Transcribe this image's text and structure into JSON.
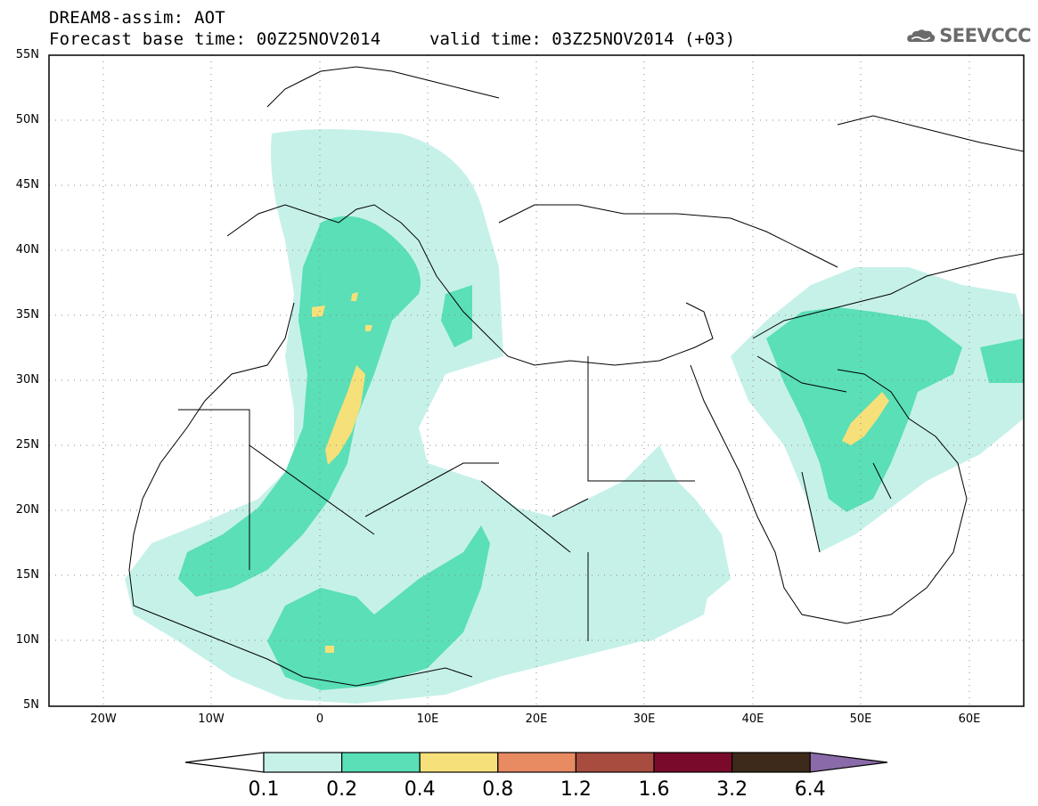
{
  "header": {
    "title_line1": "DREAM8-assim: AOT",
    "base_time": "Forecast base time: 00Z25NOV2014",
    "valid_time": "valid time: 03Z25NOV2014 (+03)",
    "logo_text": "SEEVCCC",
    "logo_icon": "cloud-logo-icon"
  },
  "map": {
    "lat_labels": [
      "55N",
      "50N",
      "45N",
      "40N",
      "35N",
      "30N",
      "25N",
      "20N",
      "15N",
      "10N",
      "5N"
    ],
    "lon_labels": [
      "20W",
      "10W",
      "0",
      "10E",
      "20E",
      "30E",
      "40E",
      "50E",
      "60E"
    ],
    "lat_range": [
      5,
      55
    ],
    "lon_range": [
      -25,
      65
    ],
    "grid": "dotted"
  },
  "colorbar": {
    "labels": [
      "0.1",
      "0.2",
      "0.4",
      "0.8",
      "1.2",
      "1.6",
      "3.2",
      "6.4"
    ],
    "colors": [
      "#ffffff",
      "#c6f1e9",
      "#5adfb7",
      "#f6e07a",
      "#e88a62",
      "#a84c3f",
      "#7a0a2b",
      "#3e2a1a",
      "#8a6aa8"
    ]
  }
}
